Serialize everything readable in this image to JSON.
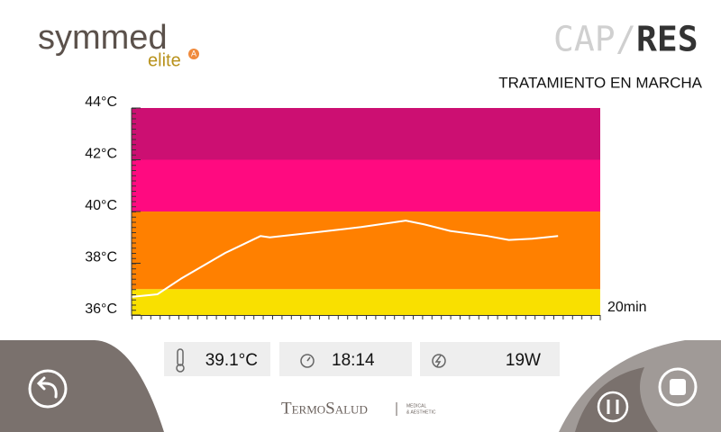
{
  "logo": {
    "brand": "symmed",
    "model": "elite",
    "badge": "A"
  },
  "mode": {
    "inactive": "CAP",
    "separator": "/",
    "active": "RES"
  },
  "status": "TRATAMIENTO EN MARCHA",
  "chart_data": {
    "type": "line",
    "x": [
      0,
      1.1,
      2.1,
      4.0,
      5.5,
      5.9,
      7.9,
      9.8,
      11.7,
      12.5,
      13.6,
      15.2,
      16.1,
      17.1,
      18.2
    ],
    "values": [
      36.7,
      36.8,
      37.4,
      38.4,
      39.05,
      39.0,
      39.2,
      39.4,
      39.65,
      39.5,
      39.25,
      39.05,
      38.9,
      38.95,
      39.05
    ],
    "color": "#ffffff",
    "xlim": [
      0,
      20
    ],
    "xticks": [
      {
        "value": 20,
        "label": "20min"
      }
    ],
    "ylim": [
      36,
      44
    ],
    "yticks": [
      {
        "value": 36,
        "label": "36°C"
      },
      {
        "value": 38,
        "label": "38°C"
      },
      {
        "value": 40,
        "label": "40°C"
      },
      {
        "value": 42,
        "label": "42°C"
      },
      {
        "value": 44,
        "label": "44°C"
      }
    ],
    "bands": [
      {
        "from": 36,
        "to": 37,
        "color": "#f9e000"
      },
      {
        "from": 37,
        "to": 40,
        "color": "#ff8000"
      },
      {
        "from": 40,
        "to": 42,
        "color": "#ff0a80"
      },
      {
        "from": 42,
        "to": 44,
        "color": "#cc0f72"
      }
    ]
  },
  "readouts": {
    "temperature": "39.1°C",
    "time": "18:14",
    "power": "19W"
  },
  "footer": {
    "brand": "TermoSalud",
    "tag1": "MEDICAL",
    "tag2": "& AESTHETIC"
  }
}
